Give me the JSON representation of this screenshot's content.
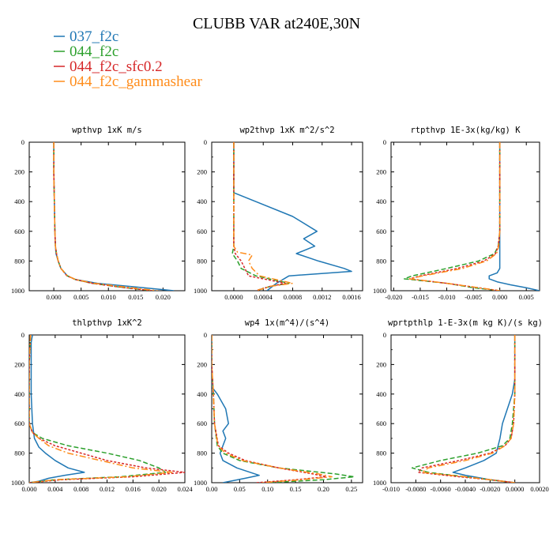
{
  "figure": {
    "title": "CLUBB VAR at240E,30N",
    "legend": [
      {
        "name": "037_f2c",
        "color": "#1f77b4"
      },
      {
        "name": "044_f2c",
        "color": "#2ca02c"
      },
      {
        "name": "044_f2c_sfc0.2",
        "color": "#d62728"
      },
      {
        "name": "044_f2c_gammashear",
        "color": "#ff8c1a"
      }
    ]
  },
  "chart_data": [
    {
      "type": "line",
      "title": "wpthvp  1xK m/s",
      "xlim": [
        -0.0045,
        0.024
      ],
      "ylim": [
        1000,
        0
      ],
      "y_reversed": true,
      "xticks": [
        0.0,
        0.005,
        0.01,
        0.015,
        0.02
      ],
      "xticklabels": [
        "0.000",
        "0.005",
        "0.010",
        "0.015",
        "0.020"
      ],
      "yticks": [
        0,
        200,
        400,
        600,
        800,
        1000
      ],
      "y": [
        0,
        200,
        400,
        600,
        700,
        750,
        800,
        850,
        900,
        925,
        950,
        975,
        1000
      ],
      "series": [
        {
          "name": "037_f2c",
          "x": [
            0.0,
            0.0,
            0.0001,
            0.0002,
            0.0003,
            0.0004,
            0.0008,
            0.0013,
            0.0025,
            0.004,
            0.008,
            0.015,
            0.022
          ]
        },
        {
          "name": "044_f2c",
          "x": [
            0.0,
            0.0,
            0.0001,
            0.0002,
            0.0003,
            0.0005,
            0.0008,
            0.0013,
            0.0025,
            0.004,
            0.007,
            0.012,
            0.018
          ]
        },
        {
          "name": "044_f2c_sfc0.2",
          "x": [
            0.0,
            0.0,
            0.0001,
            0.0002,
            0.0003,
            0.0005,
            0.0008,
            0.0013,
            0.0024,
            0.004,
            0.007,
            0.012,
            0.018
          ]
        },
        {
          "name": "044_f2c_gammashear",
          "x": [
            0.0,
            0.0,
            0.0001,
            0.0002,
            0.0003,
            0.0005,
            0.0008,
            0.0013,
            0.0025,
            0.004,
            0.0075,
            0.013,
            0.019
          ]
        }
      ]
    },
    {
      "type": "line",
      "title": "wp2thvp  1xK m^2/s^2",
      "xlim": [
        -0.0003,
        0.00175
      ],
      "ylim": [
        1000,
        0
      ],
      "y_reversed": true,
      "xticks": [
        0.0,
        0.0004,
        0.0008,
        0.0012,
        0.0016
      ],
      "xticklabels": [
        "0.0000",
        "0.0004",
        "0.0008",
        "0.0012",
        "0.0016"
      ],
      "yticks": [
        0,
        200,
        400,
        600,
        800,
        1000
      ],
      "series": [
        {
          "name": "037_f2c",
          "y": [
            0,
            200,
            340,
            360,
            400,
            500,
            600,
            650,
            700,
            750,
            800,
            850,
            870,
            900,
            950,
            1000
          ],
          "x": [
            0.0,
            0.0,
            0.0,
            0.0001,
            0.0003,
            0.0008,
            0.00113,
            0.00095,
            0.0011,
            0.00085,
            0.00115,
            0.0015,
            0.0016,
            0.00075,
            0.00058,
            0.00045
          ]
        },
        {
          "name": "044_f2c",
          "y": [
            0,
            200,
            400,
            600,
            700,
            750,
            800,
            850,
            900,
            950,
            970,
            1000
          ],
          "x": [
            0.0,
            0.0,
            0.0,
            0.0,
            0.0,
            -2e-05,
            5e-05,
            0.0001,
            0.0003,
            0.00075,
            0.0005,
            0.0003
          ]
        },
        {
          "name": "044_f2c_sfc0.2",
          "y": [
            0,
            200,
            400,
            600,
            700,
            750,
            800,
            850,
            900,
            950,
            970,
            1000
          ],
          "x": [
            0.0,
            0.0,
            0.0,
            0.0,
            0.0,
            2e-05,
            0.0001,
            0.00015,
            0.0002,
            0.0007,
            0.0005,
            0.0003
          ]
        },
        {
          "name": "044_f2c_gammashear",
          "y": [
            0,
            200,
            400,
            600,
            700,
            740,
            760,
            800,
            850,
            900,
            950,
            970,
            1000
          ],
          "x": [
            0.0,
            0.0,
            0.0,
            0.0,
            0.0,
            5e-05,
            0.00025,
            0.0002,
            0.00025,
            0.00035,
            0.0008,
            0.0005,
            0.0003
          ]
        }
      ]
    },
    {
      "type": "line",
      "title": "rtpthvp  1E-3x(kg/kg) K",
      "xlim": [
        -0.0205,
        0.0075
      ],
      "ylim": [
        1000,
        0
      ],
      "y_reversed": true,
      "xticks": [
        -0.02,
        -0.015,
        -0.01,
        -0.005,
        0.0,
        0.005
      ],
      "xticklabels": [
        "-0.020",
        "-0.015",
        "-0.010",
        "-0.005",
        "0.000",
        "0.005"
      ],
      "yticks": [
        0,
        200,
        400,
        600,
        800,
        1000
      ],
      "series": [
        {
          "name": "037_f2c",
          "y": [
            0,
            200,
            400,
            600,
            700,
            750,
            800,
            850,
            880,
            900,
            920,
            940,
            960,
            980,
            1000
          ],
          "x": [
            0.0,
            0.0,
            0.0,
            0.0,
            0.0,
            0.0,
            0.0,
            0.0,
            -0.0005,
            -0.002,
            -0.002,
            -0.0005,
            0.002,
            0.005,
            0.0075
          ]
        },
        {
          "name": "044_f2c",
          "y": [
            0,
            200,
            400,
            600,
            700,
            750,
            800,
            850,
            900,
            920,
            950,
            980,
            1000
          ],
          "x": [
            0.0,
            0.0,
            0.0,
            0.0,
            -0.0003,
            -0.001,
            -0.004,
            -0.01,
            -0.0165,
            -0.018,
            -0.01,
            -0.005,
            0.0
          ]
        },
        {
          "name": "044_f2c_sfc0.2",
          "y": [
            0,
            200,
            400,
            600,
            700,
            750,
            800,
            850,
            900,
            920,
            950,
            980,
            1000
          ],
          "x": [
            0.0,
            0.0,
            0.0,
            0.0,
            -0.0003,
            -0.0008,
            -0.003,
            -0.008,
            -0.015,
            -0.017,
            -0.01,
            -0.004,
            0.0
          ]
        },
        {
          "name": "044_f2c_gammashear",
          "y": [
            0,
            200,
            400,
            600,
            700,
            750,
            800,
            850,
            900,
            920,
            950,
            980,
            1000
          ],
          "x": [
            0.0,
            0.0,
            0.0,
            0.0,
            -0.0002,
            -0.0006,
            -0.0025,
            -0.007,
            -0.0145,
            -0.017,
            -0.01,
            -0.004,
            0.0
          ]
        }
      ]
    },
    {
      "type": "line",
      "title": "thlpthvp  1xK^2",
      "xlim": [
        0.0,
        0.024
      ],
      "ylim": [
        1000,
        0
      ],
      "y_reversed": true,
      "xticks": [
        0.0,
        0.004,
        0.008,
        0.012,
        0.016,
        0.02,
        0.024
      ],
      "xticklabels": [
        "0.000",
        "0.004",
        "0.008",
        "0.012",
        "0.016",
        "0.020",
        "0.024"
      ],
      "yticks": [
        0,
        200,
        400,
        600,
        800,
        1000
      ],
      "series": [
        {
          "name": "037_f2c",
          "y": [
            0,
            50,
            200,
            400,
            600,
            700,
            760,
            800,
            850,
            900,
            930,
            950,
            970,
            990,
            1000
          ],
          "x": [
            0.0005,
            0.0003,
            0.0003,
            0.0003,
            0.0005,
            0.0008,
            0.0015,
            0.0025,
            0.004,
            0.006,
            0.0085,
            0.0055,
            0.003,
            0.0015,
            0.0
          ]
        },
        {
          "name": "044_f2c",
          "y": [
            0,
            200,
            400,
            600,
            660,
            700,
            750,
            800,
            850,
            900,
            930,
            960,
            980,
            1000
          ],
          "x": [
            0.0002,
            0.0,
            0.0,
            0.0,
            0.0005,
            0.002,
            0.006,
            0.012,
            0.017,
            0.02,
            0.021,
            0.014,
            0.004,
            0.0
          ]
        },
        {
          "name": "044_f2c_sfc0.2",
          "y": [
            0,
            200,
            400,
            600,
            660,
            700,
            750,
            800,
            850,
            900,
            930,
            960,
            980,
            1000
          ],
          "x": [
            0.0002,
            0.0,
            0.0,
            0.0,
            0.0005,
            0.0015,
            0.004,
            0.008,
            0.012,
            0.018,
            0.024,
            0.016,
            0.005,
            0.0
          ]
        },
        {
          "name": "044_f2c_gammashear",
          "y": [
            0,
            200,
            400,
            600,
            660,
            700,
            750,
            800,
            850,
            900,
            930,
            960,
            980,
            1000
          ],
          "x": [
            0.0002,
            0.0,
            0.0,
            0.0,
            0.0005,
            0.0015,
            0.003,
            0.006,
            0.011,
            0.016,
            0.022,
            0.015,
            0.004,
            0.0
          ]
        }
      ]
    },
    {
      "type": "line",
      "title": "wp4  1x(m^4)/(s^4)",
      "xlim": [
        0.0,
        0.27
      ],
      "ylim": [
        1000,
        0
      ],
      "y_reversed": true,
      "xticks": [
        0.0,
        0.05,
        0.1,
        0.15,
        0.2,
        0.25
      ],
      "xticklabels": [
        "0.00",
        "0.05",
        "0.10",
        "0.15",
        "0.20",
        "0.25"
      ],
      "yticks": [
        0,
        200,
        400,
        600,
        800,
        1000
      ],
      "series": [
        {
          "name": "037_f2c",
          "y": [
            0,
            200,
            350,
            400,
            500,
            600,
            650,
            700,
            750,
            800,
            850,
            900,
            950,
            970,
            1000
          ],
          "x": [
            0.0,
            0.0,
            0.0,
            0.01,
            0.025,
            0.03,
            0.02,
            0.025,
            0.02,
            0.015,
            0.02,
            0.045,
            0.085,
            0.06,
            0.02
          ]
        },
        {
          "name": "044_f2c",
          "y": [
            0,
            200,
            400,
            600,
            750,
            800,
            850,
            900,
            940,
            960,
            980,
            1000
          ],
          "x": [
            0.0,
            0.0,
            0.003,
            0.005,
            0.01,
            0.02,
            0.05,
            0.12,
            0.22,
            0.255,
            0.2,
            0.1
          ]
        },
        {
          "name": "044_f2c_sfc0.2",
          "y": [
            0,
            200,
            400,
            600,
            750,
            800,
            850,
            900,
            940,
            960,
            980,
            1000
          ],
          "x": [
            0.0,
            0.0,
            0.003,
            0.005,
            0.012,
            0.03,
            0.06,
            0.12,
            0.18,
            0.205,
            0.15,
            0.08
          ]
        },
        {
          "name": "044_f2c_gammashear",
          "y": [
            0,
            200,
            400,
            600,
            750,
            800,
            850,
            900,
            940,
            960,
            980,
            1000
          ],
          "x": [
            0.0,
            0.0,
            0.003,
            0.005,
            0.011,
            0.025,
            0.055,
            0.12,
            0.19,
            0.215,
            0.16,
            0.09
          ]
        }
      ]
    },
    {
      "type": "line",
      "title": "wprtpthlp  1-E-3x(m kg K)/(s kg)",
      "xlim": [
        -0.01,
        0.002
      ],
      "ylim": [
        1000,
        0
      ],
      "y_reversed": true,
      "xticks": [
        -0.01,
        -0.008,
        -0.006,
        -0.004,
        -0.002,
        0.0,
        0.002
      ],
      "xticklabels": [
        "-0.010",
        "-0.0080",
        "-0.0060",
        "-0.0040",
        "-0.0020",
        "0.0000",
        "0.0020"
      ],
      "yticks": [
        0,
        200,
        400,
        600,
        800,
        1000
      ],
      "series": [
        {
          "name": "037_f2c",
          "y": [
            0,
            200,
            300,
            400,
            500,
            600,
            700,
            800,
            850,
            900,
            930,
            950,
            980,
            1000
          ],
          "x": [
            0.0,
            0.0,
            0.0,
            -0.0002,
            -0.0006,
            -0.001,
            -0.0012,
            -0.0015,
            -0.0025,
            -0.004,
            -0.005,
            -0.004,
            -0.002,
            0.0
          ]
        },
        {
          "name": "044_f2c",
          "y": [
            0,
            200,
            400,
            600,
            700,
            750,
            800,
            850,
            900,
            930,
            960,
            980,
            1000
          ],
          "x": [
            0.0,
            0.0,
            0.0,
            -0.0002,
            -0.0004,
            -0.001,
            -0.003,
            -0.006,
            -0.0083,
            -0.007,
            -0.004,
            -0.002,
            0.0
          ]
        },
        {
          "name": "044_f2c_sfc0.2",
          "y": [
            0,
            200,
            400,
            600,
            700,
            750,
            800,
            850,
            900,
            930,
            960,
            980,
            1000
          ],
          "x": [
            0.0,
            0.0,
            0.0,
            -0.0001,
            -0.0003,
            -0.0008,
            -0.002,
            -0.0045,
            -0.0075,
            -0.0078,
            -0.0045,
            -0.002,
            0.0
          ]
        },
        {
          "name": "044_f2c_gammashear",
          "y": [
            0,
            200,
            400,
            600,
            700,
            750,
            800,
            850,
            900,
            930,
            960,
            980,
            1000
          ],
          "x": [
            0.0,
            0.0,
            0.0,
            -0.0001,
            -0.0003,
            -0.0008,
            -0.0018,
            -0.004,
            -0.007,
            -0.0075,
            -0.004,
            -0.002,
            0.0
          ]
        }
      ]
    }
  ]
}
